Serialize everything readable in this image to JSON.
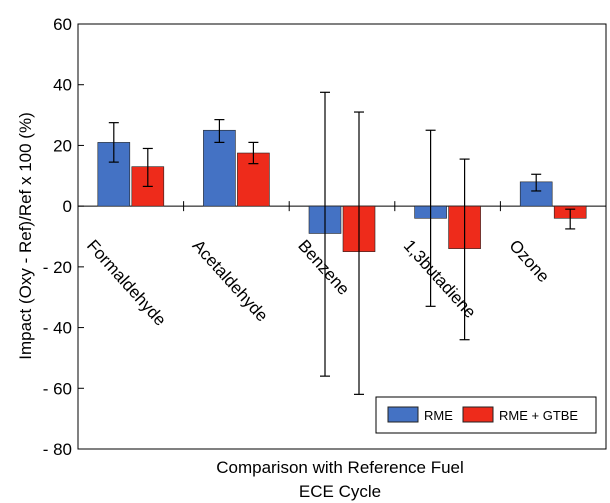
{
  "chart_data": {
    "type": "bar",
    "title": "",
    "xlabel": [
      "Comparison with Reference Fuel",
      "ECE Cycle"
    ],
    "ylabel": "Impact (Oxy - Ref)/Ref x 100 (%)",
    "ylim": [
      -80,
      60
    ],
    "yticks": [
      60,
      40,
      20,
      0,
      -20,
      -40,
      -60,
      -80
    ],
    "ytick_labels": [
      "60",
      "40",
      "20",
      "0",
      "- 20",
      "- 40",
      "- 60",
      "- 80"
    ],
    "categories": [
      "Formaldehyde",
      "Acetaldehyde",
      "Benzene",
      "1,3butadiene",
      "Ozone"
    ],
    "series": [
      {
        "name": "RME",
        "color": "#4472c4",
        "values": [
          21,
          25,
          -9,
          -4,
          8
        ],
        "err_low": [
          14.5,
          21,
          -56,
          -33,
          5
        ],
        "err_high": [
          27.5,
          28.5,
          37.5,
          25,
          10.5
        ]
      },
      {
        "name": "RME + GTBE",
        "color": "#ee2b1b",
        "values": [
          13,
          17.5,
          -15,
          -14,
          -4
        ],
        "err_low": [
          6.5,
          14,
          -62,
          -44,
          -7.5
        ],
        "err_high": [
          19,
          21,
          31,
          15.5,
          -1
        ]
      }
    ],
    "legend": "bottom-right",
    "grid": false
  }
}
